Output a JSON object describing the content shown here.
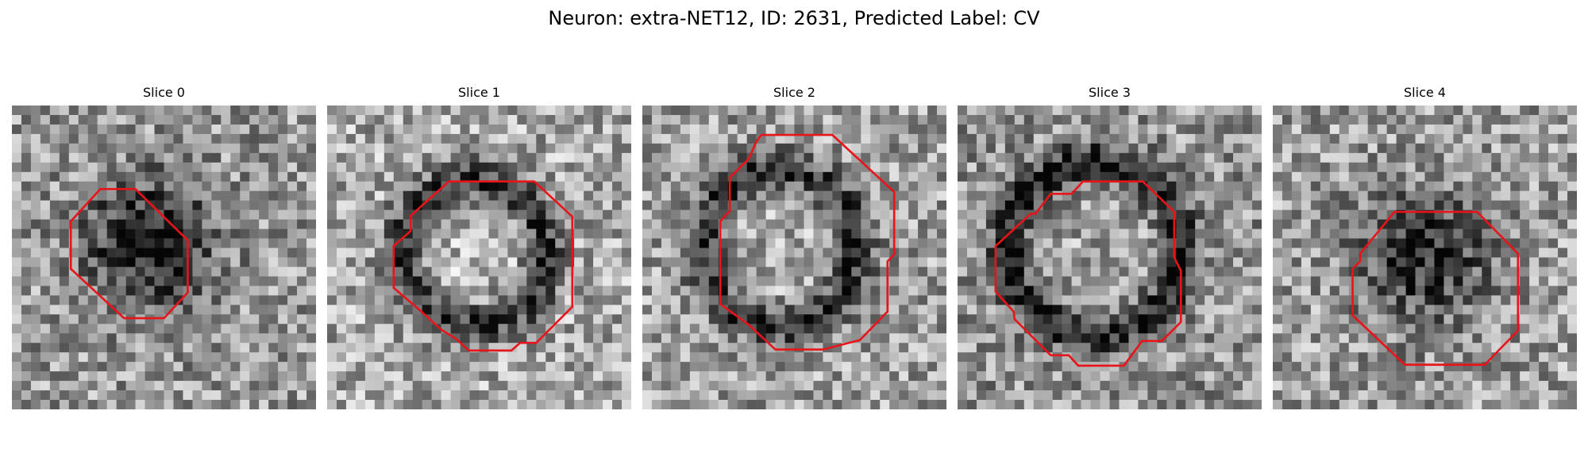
{
  "figure": {
    "title": "Neuron: extra-NET12, ID: 2631, Predicted Label: CV"
  },
  "colors": {
    "contour": "#e8141a",
    "background": "#ffffff"
  },
  "slices": [
    {
      "label": "Slice 0"
    },
    {
      "label": "Slice 1"
    },
    {
      "label": "Slice 2"
    },
    {
      "label": "Slice 3"
    },
    {
      "label": "Slice 4"
    }
  ]
}
